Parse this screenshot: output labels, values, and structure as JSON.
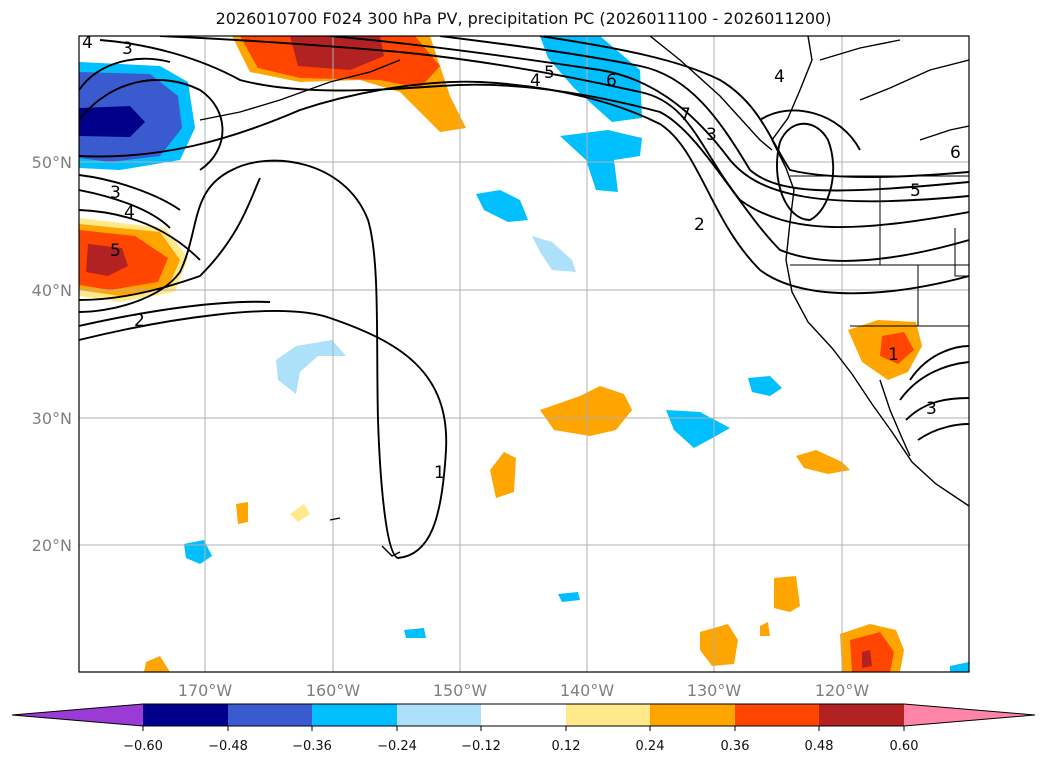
{
  "title": "2026010700 F024 300 hPa PV, precipitation PC (2026011100 - 2026011200)",
  "map": {
    "lat_labels": [
      "50°N",
      "40°N",
      "30°N",
      "20°N"
    ],
    "lon_labels": [
      "170°W",
      "160°W",
      "150°W",
      "140°W",
      "130°W",
      "120°W"
    ],
    "contour_labels": [
      "4",
      "3",
      "3",
      "4",
      "5",
      "2",
      "1",
      "5",
      "4",
      "6",
      "7",
      "3",
      "2",
      "5",
      "6",
      "4",
      "1",
      "3"
    ]
  },
  "colorbar": {
    "ticks": [
      "−0.60",
      "−0.48",
      "−0.36",
      "−0.24",
      "−0.12",
      "0.12",
      "0.24",
      "0.36",
      "0.48",
      "0.60"
    ],
    "colors": [
      "#9a3bd6",
      "#00008b",
      "#3a5bcf",
      "#00bfff",
      "#ade1f9",
      "#ffffff",
      "#ffe98a",
      "#ffa500",
      "#ff4500",
      "#b22222",
      "#ff85a8"
    ]
  }
}
